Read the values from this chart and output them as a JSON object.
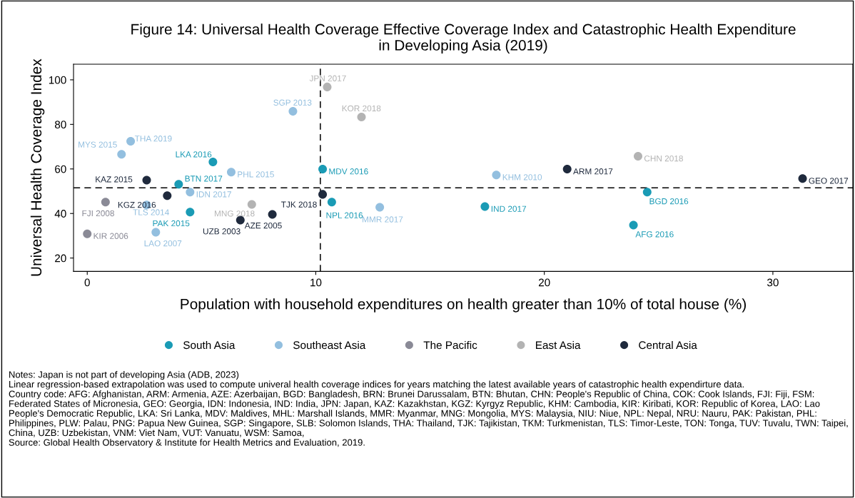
{
  "chart_data": {
    "type": "scatter",
    "title": "Figure 14: Universal Health Coverage Effective Coverage Index and Catastrophic Health Expenditure\nin Developing Asia (2019)",
    "xlabel": "Population with household expenditures on health greater than 10% of total house (%)",
    "ylabel": "Universal Health Coverage Index",
    "xlim": [
      -0.6,
      33.5
    ],
    "ylim": [
      14,
      107
    ],
    "xticks": [
      0,
      10,
      20,
      30
    ],
    "yticks": [
      20,
      40,
      60,
      80,
      100
    ],
    "grid": false,
    "legend": "bottom",
    "marker": "circle",
    "series": [
      {
        "name": "South Asia",
        "color": "#1a9bb5",
        "x": [
          5.5,
          10.3,
          4.0,
          4.5,
          10.7,
          17.4,
          24.5,
          23.9
        ],
        "values": [
          63.1,
          59.9,
          53.1,
          40.6,
          45.1,
          43.1,
          49.6,
          34.8
        ]
      },
      {
        "name": "Southeast Asia",
        "color": "#93bfdf",
        "x": [
          9.0,
          1.9,
          1.5,
          6.3,
          4.5,
          2.6,
          3.0,
          12.8,
          17.9
        ],
        "values": [
          85.9,
          72.4,
          66.6,
          58.6,
          49.6,
          43.8,
          31.6,
          42.8,
          57.3
        ]
      },
      {
        "name": "The Pacific",
        "color": "#8a8a96",
        "x": [
          0.8,
          0.0
        ],
        "values": [
          45.1,
          30.9
        ]
      },
      {
        "name": "East Asia",
        "color": "#b3b3b3",
        "x": [
          10.5,
          12.0,
          7.2,
          24.1
        ],
        "values": [
          96.8,
          83.3,
          44.1,
          65.7
        ]
      },
      {
        "name": "Central Asia",
        "color": "#1f2a3d",
        "x": [
          2.6,
          3.5,
          8.1,
          6.7,
          10.3,
          21.0,
          31.3
        ],
        "values": [
          55.0,
          48.0,
          39.6,
          37.0,
          48.6,
          59.9,
          55.7
        ]
      }
    ],
    "ref_lines": [
      {
        "axis": "x",
        "value": 10.2,
        "line_style": "dashed",
        "color": "#000000"
      },
      {
        "axis": "y",
        "value": 51.5,
        "line_style": "dashed",
        "color": "#000000"
      }
    ],
    "annotations": [
      {
        "text": "JPN 2017",
        "x": 10.5,
        "y": 96.8
      },
      {
        "text": "SGP 2013",
        "x": 9.0,
        "y": 85.9
      },
      {
        "text": "KOR 2018",
        "x": 12.0,
        "y": 83.3
      },
      {
        "text": "THA 2019",
        "x": 1.9,
        "y": 72.4
      },
      {
        "text": "MYS 2015",
        "x": 1.5,
        "y": 66.6
      },
      {
        "text": "LKA 2016",
        "x": 5.5,
        "y": 63.1
      },
      {
        "text": "PHL 2015",
        "x": 6.3,
        "y": 58.6
      },
      {
        "text": "MDV 2016",
        "x": 10.3,
        "y": 59.9
      },
      {
        "text": "KAZ 2015",
        "x": 2.6,
        "y": 55.0
      },
      {
        "text": "BTN 2017",
        "x": 4.0,
        "y": 53.1
      },
      {
        "text": "IDN 2017",
        "x": 4.5,
        "y": 49.6
      },
      {
        "text": "KGZ 2016",
        "x": 3.5,
        "y": 48.0
      },
      {
        "text": "FJI 2008",
        "x": 0.8,
        "y": 45.1
      },
      {
        "text": "TLS 2014",
        "x": 2.6,
        "y": 43.8
      },
      {
        "text": "MNG 2018",
        "x": 7.2,
        "y": 44.1
      },
      {
        "text": "PAK 2015",
        "x": 4.5,
        "y": 40.6
      },
      {
        "text": "AZE 2005",
        "x": 8.1,
        "y": 39.6
      },
      {
        "text": "UZB 2003",
        "x": 6.7,
        "y": 37.0
      },
      {
        "text": "KIR 2006",
        "x": 0.0,
        "y": 30.9
      },
      {
        "text": "LAO 2007",
        "x": 3.0,
        "y": 31.6
      },
      {
        "text": "TJK 2018",
        "x": 10.3,
        "y": 48.6
      },
      {
        "text": "NPL 2016",
        "x": 10.7,
        "y": 45.1
      },
      {
        "text": "MMR 2017",
        "x": 12.8,
        "y": 42.8
      },
      {
        "text": "IND 2017",
        "x": 17.4,
        "y": 43.1
      },
      {
        "text": "KHM 2010",
        "x": 17.9,
        "y": 57.3
      },
      {
        "text": "ARM 2017",
        "x": 21.0,
        "y": 59.9
      },
      {
        "text": "CHN 2018",
        "x": 24.1,
        "y": 65.7
      },
      {
        "text": "GEO 2017",
        "x": 31.3,
        "y": 55.7
      },
      {
        "text": "BGD 2016",
        "x": 24.5,
        "y": 49.6
      },
      {
        "text": "AFG 2016",
        "x": 23.9,
        "y": 34.8
      },
      "Notes: Japan is not part of developing Asia (ADB, 2023)\nLinear regression-based extrapolation was used to compute univeral health coverage indices for years matching the latest available years of catastrophic health expendirture data.\nCountry code: AFG: Afghanistan, ARM: Armenia, AZE: Azerbaijan, BGD: Bangladesh, BRN: Brunei Darussalam, BTN: Bhutan, CHN: People's Republic of China, COK: Cook Islands, FJI: Fiji, FSM: Federated States of Micronesia, GEO: Georgia, IDN: Indonesia, IND: India, JPN: Japan, KAZ: Kazakhstan, KGZ: Kyrgyz Republic, KHM: Cambodia, KIR: Kiribati, KOR: Republic of Korea, LAO: Lao People's Democratic Republic, LKA: Sri Lanka, MDV: Maldives, MHL: Marshall Islands, MMR: Myanmar, MNG: Mongolia, MYS: Malaysia, NIU: Niue, NPL: Nepal, NRU: Nauru, PAK: Pakistan, PHL: Philippines, PLW: Palau, PNG: Papua New Guinea, SGP: Singapore, SLB: Solomon Islands, THA: Thailand, TJK: Tajikistan, TKM: Turkmenistan, TLS: Timor-Leste, TON: Tonga, TUV: Tuvalu, TWN: Taipei, China, UZB: Uzbekistan, VNM: Viet Nam, VUT: Vanuatu, WSM: Samoa,\nSource: Global Health Observatory & Institute for Health Metrics and Evaluation, 2019."
    ]
  }
}
